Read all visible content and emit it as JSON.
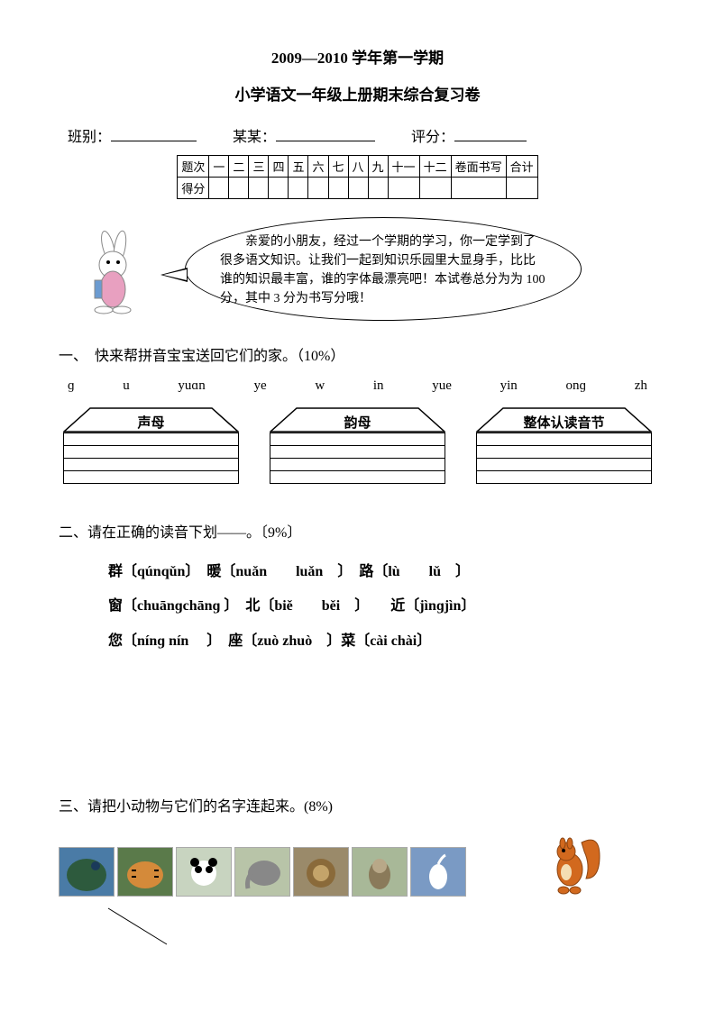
{
  "header": {
    "title1": "2009—2010 学年第一学期",
    "title2": "小学语文一年级上册期末综合复习卷"
  },
  "info": {
    "class_label": "班别：",
    "name_label": "某某：",
    "score_label": "评分：",
    "class_blank_width": 95,
    "name_blank_width": 110,
    "score_blank_width": 80
  },
  "score_table": {
    "row1_head": "题次",
    "row2_head": "得分",
    "cols": [
      "一",
      "二",
      "三",
      "四",
      "五",
      "六",
      "七",
      "八",
      "九",
      "十一",
      "十二",
      "卷面书写",
      "合计"
    ]
  },
  "speech": {
    "text": "　　亲爱的小朋友，经过一个学期的学习，你一定学到了很多语文知识。让我们一起到知识乐园里大显身手，比比谁的知识最丰富，谁的字体最漂亮吧！本试卷总分为为 100 分，其中 3 分为书写分哦！"
  },
  "q1": {
    "title": "一、　快来帮拼音宝宝送回它们的家。（10%）",
    "pinyin": [
      "ɡ",
      "u",
      "yuɑn",
      "ye",
      "w",
      "in",
      "yue",
      "yin",
      "onɡ",
      "zh"
    ],
    "houses": [
      "声母",
      "韵母",
      "整体认读音节"
    ]
  },
  "q2": {
    "title": "二、请在正确的读音下划——。〔9%〕",
    "line1": "群〔qúnqǔn〕　暖〔nuǎn　　luǎn　〕　路〔lù　　lǔ　〕",
    "line2": "窗〔chuānɡchānɡ 〕　北〔biě　　běi　〕　　近〔jìnɡjìn〕",
    "line3": "您〔nínɡ nín　 〕　座〔zuò zhuò　〕菜〔cài chài〕"
  },
  "q3": {
    "title": "三、请把小动物与它们的名字连起来。(8%)",
    "animals": [
      "孔雀",
      "老虎",
      "熊猫",
      "大象",
      "狮子",
      "猴子",
      "仙鹤"
    ],
    "squirrel_color": "#d2691e"
  },
  "colors": {
    "text": "#000000",
    "bg": "#ffffff"
  }
}
